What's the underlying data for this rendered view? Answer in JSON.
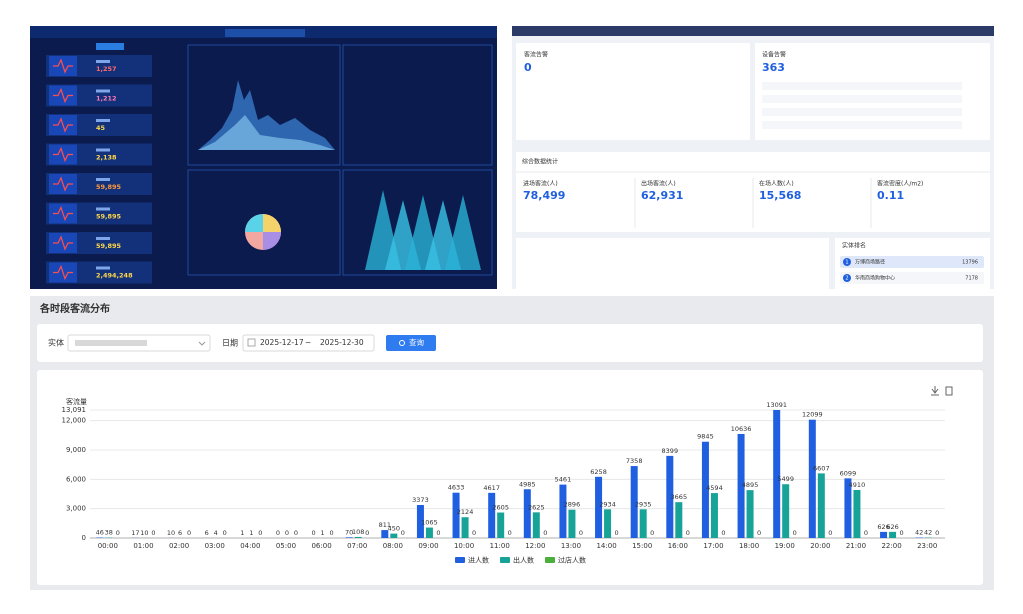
{
  "dashboard_dark": {
    "stats": [
      "1,257",
      "1,212",
      "45",
      "2,138",
      "59,895",
      "59,895",
      "59,895",
      "2,494,248"
    ]
  },
  "dashboard_light": {
    "alarm_card": {
      "title": "客流告警",
      "value": "0"
    },
    "device_card": {
      "title": "设备告警",
      "value": "363"
    },
    "summary": {
      "title": "综合数据统计",
      "metrics": [
        {
          "label": "进场客流(人)",
          "value": "78,499"
        },
        {
          "label": "出场客流(人)",
          "value": "62,931"
        },
        {
          "label": "在场人数(人)",
          "value": "15,568"
        },
        {
          "label": "客流密度(人/m2)",
          "value": "0.11"
        }
      ]
    },
    "ranking": {
      "title": "实体排名",
      "rows": [
        [
          "1",
          "万博商场路径",
          "13796"
        ],
        [
          "2",
          "华南商场购物中心",
          "7178"
        ]
      ]
    }
  },
  "filter": {
    "entity_label": "实体",
    "date_label": "日期",
    "start_date": "2025-12-17",
    "separator": "~",
    "end_date": "2025-12-30",
    "button": "查询"
  },
  "chart_data": {
    "type": "bar",
    "title": "各时段客流分布",
    "y_label": "客流量",
    "categories": [
      "00:00",
      "01:00",
      "02:00",
      "03:00",
      "04:00",
      "05:00",
      "06:00",
      "07:00",
      "08:00",
      "09:00",
      "10:00",
      "11:00",
      "12:00",
      "13:00",
      "14:00",
      "15:00",
      "16:00",
      "17:00",
      "18:00",
      "19:00",
      "20:00",
      "21:00",
      "22:00",
      "23:00"
    ],
    "series": [
      {
        "name": "进人数",
        "color": "#1f5fe0",
        "values": [
          46,
          17,
          10,
          6,
          1,
          0,
          0,
          70,
          811,
          3373,
          4633,
          4617,
          4985,
          5461,
          6258,
          7358,
          8399,
          9845,
          10636,
          13091,
          12099,
          6099,
          626,
          42
        ]
      },
      {
        "name": "出人数",
        "color": "#17a398",
        "values": [
          38,
          10,
          6,
          4,
          1,
          0,
          1,
          108,
          450,
          1065,
          2124,
          2605,
          2625,
          2896,
          2934,
          2935,
          3665,
          4594,
          4895,
          5499,
          6607,
          4910,
          626,
          42
        ]
      },
      {
        "name": "过店人数",
        "color": "#4caf3a",
        "values": [
          0,
          0,
          0,
          0,
          0,
          0,
          0,
          0,
          0,
          0,
          0,
          0,
          0,
          0,
          0,
          0,
          0,
          0,
          0,
          0,
          0,
          0,
          0,
          0
        ]
      }
    ],
    "ylim": [
      0,
      13091
    ],
    "yticks": [
      0,
      {
        "value": 3000,
        "label": "3,000"
      },
      {
        "value": 6000,
        "label": "6,000"
      },
      {
        "value": 9000,
        "label": "9,000"
      },
      {
        "value": 12000,
        "label": "12,000"
      },
      {
        "value": 13091,
        "label": "13,091"
      }
    ],
    "grid": true
  }
}
